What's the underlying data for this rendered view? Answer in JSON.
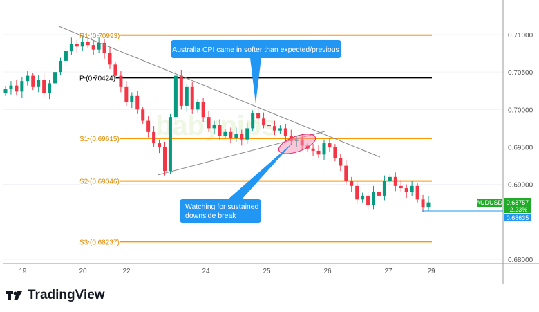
{
  "chart_data": {
    "type": "candlestick",
    "symbol": "AUDUSD",
    "last_price": "0.68757",
    "change": "-2.23%",
    "marked_price": "0.68635",
    "ylim": [
      0.6795,
      0.7125
    ],
    "y_ticks": [
      "0.71000",
      "0.70500",
      "0.70000",
      "0.69500",
      "0.69000",
      "0.68000"
    ],
    "x_ticks": [
      "19",
      "20",
      "22",
      "24",
      "25",
      "26",
      "27",
      "29"
    ],
    "closes": [
      0.7027,
      0.7032,
      0.7024,
      0.7038,
      0.7045,
      0.703,
      0.704,
      0.7022,
      0.7035,
      0.705,
      0.7065,
      0.7078,
      0.7088,
      0.7084,
      0.709,
      0.7086,
      0.708,
      0.7089,
      0.7076,
      0.706,
      0.7045,
      0.703,
      0.701,
      0.7018,
      0.7,
      0.6985,
      0.697,
      0.6955,
      0.695,
      0.6918,
      0.699,
      0.7045,
      0.7005,
      0.703,
      0.7,
      0.701,
      0.699,
      0.6975,
      0.698,
      0.6965,
      0.697,
      0.6962,
      0.6968,
      0.696,
      0.6975,
      0.6995,
      0.6988,
      0.698,
      0.6978,
      0.6972,
      0.6975,
      0.6965,
      0.6958,
      0.696,
      0.6952,
      0.6948,
      0.6945,
      0.694,
      0.6955,
      0.695,
      0.6935,
      0.6925,
      0.6905,
      0.6898,
      0.688,
      0.6885,
      0.6872,
      0.689,
      0.6885,
      0.6905,
      0.691,
      0.6898,
      0.6895,
      0.689,
      0.6898,
      0.688,
      0.687,
      0.6876
    ],
    "levels": [
      {
        "label": "R1 (0.70993)",
        "value": 0.70993,
        "color": "#ff9800"
      },
      {
        "label": "P (0.70424)",
        "value": 0.70424,
        "color": "#000000"
      },
      {
        "label": "S1 (0.69615)",
        "value": 0.69615,
        "color": "#ff9800"
      },
      {
        "label": "S2 (0.69046)",
        "value": 0.69046,
        "color": "#ff9800"
      },
      {
        "label": "S3 (0.68237)",
        "value": 0.68237,
        "color": "#ff9800"
      }
    ],
    "annotations": [
      "Australia CPI came in softer than expected/previous",
      "Watching for sustained downside break"
    ],
    "colors": {
      "up": "#089981",
      "down": "#f23645",
      "callout": "#2196f3",
      "last": "#22ab28"
    }
  },
  "watermark": "babypips",
  "brand": "TradingView"
}
